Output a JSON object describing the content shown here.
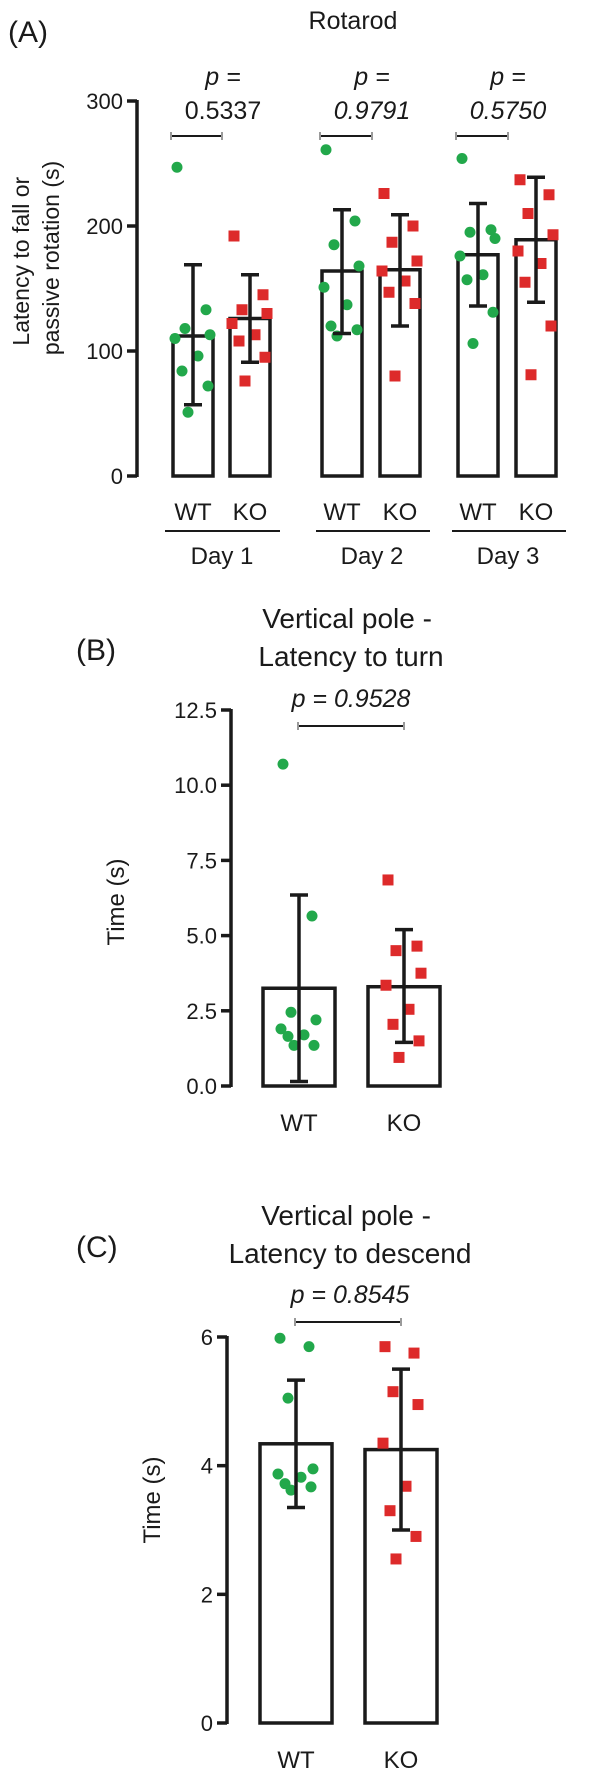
{
  "colors": {
    "wt": "#22a84b",
    "ko": "#dd2a2a",
    "axis": "#1a1a1a",
    "bracket": "#9a9a9a"
  },
  "chart_data": [
    {
      "type": "bar",
      "panel_label": "(A)",
      "title": "Rotarod",
      "ylabel": "Latency to fall or passive rotation (s)",
      "ylabel_lines": [
        "Latency to fall or",
        "passive rotation (s)"
      ],
      "ylim": [
        0,
        300
      ],
      "yticks": [
        "0",
        "100",
        "200",
        "300"
      ],
      "groups": [
        {
          "label": "Day 1",
          "bars": [
            {
              "label": "WT",
              "value": 112,
              "error": [
                57,
                169
              ],
              "points": [
                247,
                133,
                118,
                113,
                110,
                96,
                84,
                72,
                51
              ]
            },
            {
              "label": "KO",
              "value": 126,
              "error": [
                91,
                161
              ],
              "points": [
                192,
                145,
                133,
                130,
                122,
                113,
                108,
                95,
                76
              ]
            }
          ],
          "p_prefix": "p =",
          "p_value": "0.5337"
        },
        {
          "label": "Day 2",
          "bars": [
            {
              "label": "WT",
              "value": 164,
              "error": [
                114,
                213
              ],
              "points": [
                261,
                204,
                185,
                168,
                151,
                137,
                120,
                117,
                112
              ]
            },
            {
              "label": "KO",
              "value": 165,
              "error": [
                120,
                209
              ],
              "points": [
                226,
                200,
                187,
                172,
                164,
                156,
                147,
                138,
                80
              ]
            }
          ],
          "p_prefix": "p =",
          "p_value": "0.9791"
        },
        {
          "label": "Day 3",
          "bars": [
            {
              "label": "WT",
              "value": 177,
              "error": [
                136,
                218
              ],
              "points": [
                254,
                197,
                195,
                190,
                176,
                161,
                157,
                131,
                106
              ]
            },
            {
              "label": "KO",
              "value": 189,
              "error": [
                139,
                239
              ],
              "points": [
                237,
                225,
                210,
                193,
                180,
                170,
                155,
                120,
                81
              ]
            }
          ],
          "p_prefix": "p =",
          "p_value": "0.5750"
        }
      ]
    },
    {
      "type": "bar",
      "panel_label": "(B)",
      "title": "Vertical pole - Latency to turn",
      "title_lines": [
        "Vertical pole -",
        "Latency to turn"
      ],
      "ylabel": "Time (s)",
      "ylim": [
        0,
        12.5
      ],
      "yticks": [
        "0.0",
        "2.5",
        "5.0",
        "7.5",
        "10.0",
        "12.5"
      ],
      "p_text": "p = 0.9528",
      "bars": [
        {
          "label": "WT",
          "value": 3.25,
          "error": [
            0.15,
            6.35
          ],
          "points": [
            10.7,
            5.65,
            2.45,
            2.2,
            1.9,
            1.7,
            1.65,
            1.35,
            1.35
          ]
        },
        {
          "label": "KO",
          "value": 3.3,
          "error": [
            1.45,
            5.2
          ],
          "points": [
            6.85,
            4.65,
            4.5,
            3.75,
            3.35,
            2.55,
            2.05,
            1.5,
            0.95
          ]
        }
      ]
    },
    {
      "type": "bar",
      "panel_label": "(C)",
      "title": "Vertical pole - Latency to descend",
      "title_lines": [
        "Vertical pole -",
        "Latency to descend"
      ],
      "ylabel": "Time (s)",
      "ylim": [
        0,
        6
      ],
      "yticks": [
        "0",
        "2",
        "4",
        "6"
      ],
      "p_text": "p = 0.8545",
      "bars": [
        {
          "label": "WT",
          "value": 4.34,
          "error": [
            3.35,
            5.33
          ],
          "points": [
            5.98,
            5.85,
            5.05,
            3.95,
            3.87,
            3.82,
            3.72,
            3.67,
            3.62
          ]
        },
        {
          "label": "KO",
          "value": 4.25,
          "error": [
            3.0,
            5.5
          ],
          "points": [
            5.85,
            5.75,
            5.15,
            4.95,
            4.35,
            3.68,
            3.3,
            2.9,
            2.55
          ]
        }
      ]
    }
  ]
}
